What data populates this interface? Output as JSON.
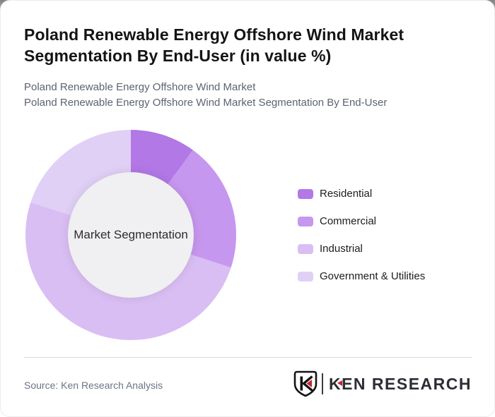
{
  "page": {
    "title": "Poland Renewable Energy Offshore Wind Market Segmentation By End-User (in value %)",
    "subtitle_line1": "Poland Renewable Energy Offshore Wind Market",
    "subtitle_line2": "Poland Renewable Energy Offshore Wind Market Segmentation By End-User"
  },
  "chart_data": {
    "type": "pie",
    "subtype": "donut",
    "title": "Poland Renewable Energy Offshore Wind Market Segmentation By End-User (in value %)",
    "unit": "value %",
    "center_label": "Market Segmentation",
    "legend_position": "right",
    "start_angle_deg": 0,
    "direction": "clockwise",
    "segments": [
      {
        "label": "Residential",
        "value": 10,
        "color": "#b278e6"
      },
      {
        "label": "Commercial",
        "value": 20,
        "color": "#c697ee"
      },
      {
        "label": "Industrial",
        "value": 50,
        "color": "#d9bef3"
      },
      {
        "label": "Government & Utilities",
        "value": 20,
        "color": "#e1d0f6"
      }
    ]
  },
  "footer": {
    "source": "Source: Ken Research Analysis",
    "logo": {
      "shield_letter": "K",
      "text_k": "K",
      "text_rest": "EN RESEARCH"
    }
  },
  "colors": {
    "center_circle": "#f0eff1",
    "divider": "#dcdcdc",
    "logo_red": "#c1272d"
  }
}
